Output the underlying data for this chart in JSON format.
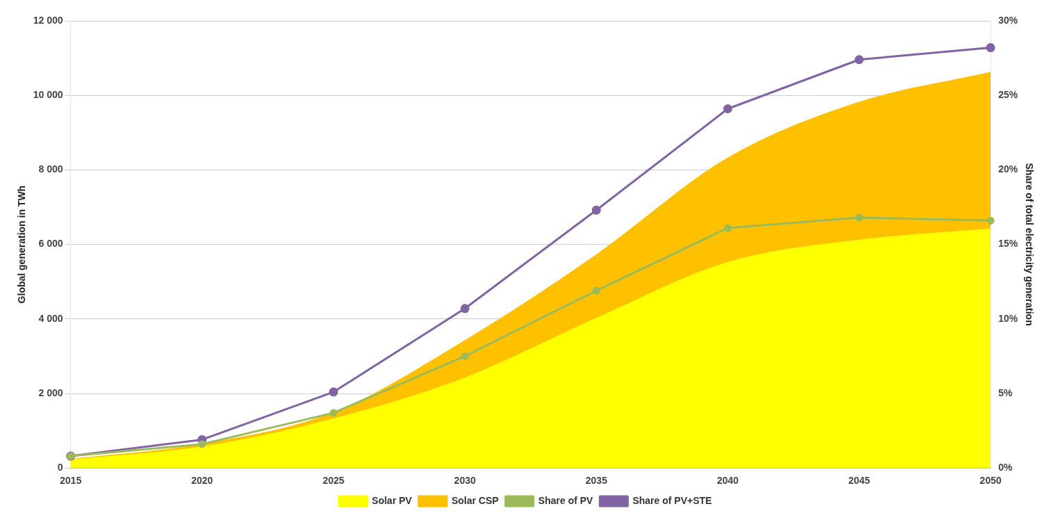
{
  "chart_data": {
    "type": "area",
    "stacked": true,
    "categories": [
      "2015",
      "2020",
      "2025",
      "2030",
      "2035",
      "2040",
      "2045",
      "2050"
    ],
    "ylabel": "Global generation in TWh",
    "y2label": "Share of total electricity generation",
    "ylim": [
      0,
      12000
    ],
    "yticks": [
      0,
      {
        "value": 2000,
        "label": "2 000"
      },
      {
        "value": 4000,
        "label": "4 000"
      },
      {
        "value": 6000,
        "label": "6 000"
      },
      {
        "value": 8000,
        "label": "8 000"
      },
      {
        "value": 10000,
        "label": "10 000"
      },
      {
        "value": 12000,
        "label": "12 000"
      }
    ],
    "y2lim": [
      0,
      30
    ],
    "y2ticks": [
      {
        "value": 0,
        "label": "0%"
      },
      {
        "value": 5,
        "label": "5%"
      },
      {
        "value": 10,
        "label": "10%"
      },
      {
        "value": 15,
        "label": "15%"
      },
      {
        "value": 20,
        "label": "20%"
      },
      {
        "value": 25,
        "label": "25%"
      },
      {
        "value": 30,
        "label": "30%"
      }
    ],
    "grid": "y",
    "legend": "bottom",
    "series": [
      {
        "name": "Solar PV",
        "color": "#ffff00",
        "values": [
          200,
          550,
          1300,
          2400,
          4000,
          5500,
          6100,
          6400
        ]
      },
      {
        "name": "Solar CSP",
        "color": "#ffc000",
        "values": [
          20,
          70,
          170,
          1000,
          1700,
          2800,
          3700,
          4200
        ]
      },
      {
        "name": "Share of PV",
        "type": "line",
        "marker": "circle",
        "axis": "y2",
        "color": "#9bbb59",
        "values": [
          0.8,
          1.6,
          3.7,
          7.5,
          11.9,
          16.1,
          16.8,
          16.6
        ]
      },
      {
        "name": "Share of PV+STE",
        "type": "line",
        "marker": "circle",
        "axis": "y2",
        "color": "#8064a2",
        "values": [
          0.8,
          1.9,
          5.1,
          10.7,
          17.3,
          24.1,
          27.4,
          28.2
        ]
      }
    ]
  }
}
